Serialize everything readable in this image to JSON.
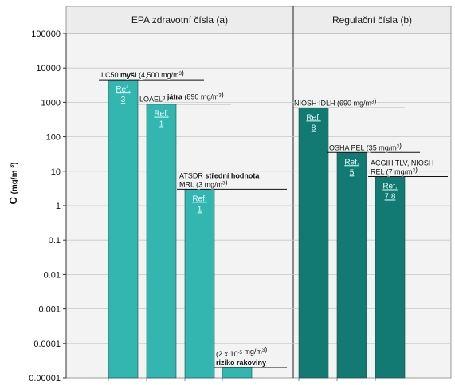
{
  "chart_data": {
    "type": "bar",
    "title": "",
    "ylabel_prefix": "C",
    "ylabel_unit": "(mg/m",
    "ylabel_sup": "3",
    "ylabel_close": ")",
    "yscale": "log",
    "ylim": [
      1e-05,
      100000
    ],
    "yticks": [
      {
        "value": 100000,
        "label": "100000"
      },
      {
        "value": 10000,
        "label": "10000"
      },
      {
        "value": 1000,
        "label": "1000"
      },
      {
        "value": 100,
        "label": "100"
      },
      {
        "value": 10,
        "label": "10"
      },
      {
        "value": 1,
        "label": "1"
      },
      {
        "value": 0.1,
        "label": "0.1"
      },
      {
        "value": 0.01,
        "label": "0.01"
      },
      {
        "value": 0.001,
        "label": "0.001"
      },
      {
        "value": 0.0001,
        "label": "0.0001"
      },
      {
        "value": 1e-05,
        "label": "0.00001"
      }
    ],
    "panels": [
      {
        "label": "EPA zdravotní čísla (a)"
      },
      {
        "label": "Regulační čísla (b)"
      }
    ],
    "bars": [
      {
        "panel": 0,
        "value": 4500,
        "color": "#33b5b0",
        "ref": [
          "Ref.",
          "3"
        ]
      },
      {
        "panel": 0,
        "value": 890,
        "color": "#33b5b0",
        "ref": [
          "Ref.",
          "1"
        ]
      },
      {
        "panel": 0,
        "value": 3,
        "color": "#33b5b0",
        "ref": [
          "Ref.",
          "1"
        ]
      },
      {
        "panel": 0,
        "value": 2e-05,
        "color": "#33b5b0",
        "ref": []
      },
      {
        "panel": 1,
        "value": 690,
        "color": "#127a72",
        "ref": [
          "Ref.",
          "8"
        ]
      },
      {
        "panel": 1,
        "value": 35,
        "color": "#127a72",
        "ref": [
          "Ref.",
          "5"
        ]
      },
      {
        "panel": 1,
        "value": 7,
        "color": "#127a72",
        "ref": [
          "Ref.",
          "7,8"
        ]
      }
    ],
    "annotations": [
      {
        "value": 4500,
        "lines": [
          [
            {
              "t": "LC50 "
            },
            {
              "t": "myši",
              "b": true
            },
            {
              "t": " (4,500 mg/m"
            },
            {
              "t": "3",
              "sup": true
            },
            {
              "t": ")"
            }
          ]
        ]
      },
      {
        "value": 890,
        "lines": [
          [
            {
              "t": "LOAEL"
            },
            {
              "t": "d",
              "sup": true
            },
            {
              "t": " "
            },
            {
              "t": "játra",
              "b": true
            },
            {
              "t": "  (890 mg/m"
            },
            {
              "t": "3",
              "sup": true
            },
            {
              "t": ")"
            }
          ]
        ]
      },
      {
        "value": 3,
        "lines": [
          [
            {
              "t": "ATSDR "
            },
            {
              "t": "střední hodnota",
              "b": true
            }
          ],
          [
            {
              "t": "MRL (3 mg/m"
            },
            {
              "t": "3",
              "sup": true
            },
            {
              "t": ")"
            }
          ]
        ]
      },
      {
        "value": 2e-05,
        "lines": [
          [
            {
              "t": "(2 x 10"
            },
            {
              "t": "-5",
              "sup": true
            },
            {
              "t": " mg/m"
            },
            {
              "t": "3",
              "sup": true
            },
            {
              "t": ")"
            }
          ],
          [
            {
              "t": "riziko rakoviny",
              "b": true
            }
          ]
        ]
      },
      {
        "value": 690,
        "lines": [
          [
            {
              "t": "NIOSH IDLH (690 mg/m"
            },
            {
              "t": "3",
              "sup": true
            },
            {
              "t": ")"
            }
          ]
        ]
      },
      {
        "value": 35,
        "lines": [
          [
            {
              "t": "OSHA PEL  (35 mg/m"
            },
            {
              "t": "3",
              "sup": true
            },
            {
              "t": ")"
            }
          ]
        ]
      },
      {
        "value": 7,
        "lines": [
          [
            {
              "t": "ACGIH TLV, NIOSH"
            }
          ],
          [
            {
              "t": "REL (7 mg/m"
            },
            {
              "t": "3",
              "sup": true
            },
            {
              "t": ")"
            }
          ]
        ]
      }
    ],
    "grid": true,
    "legend": "none"
  }
}
